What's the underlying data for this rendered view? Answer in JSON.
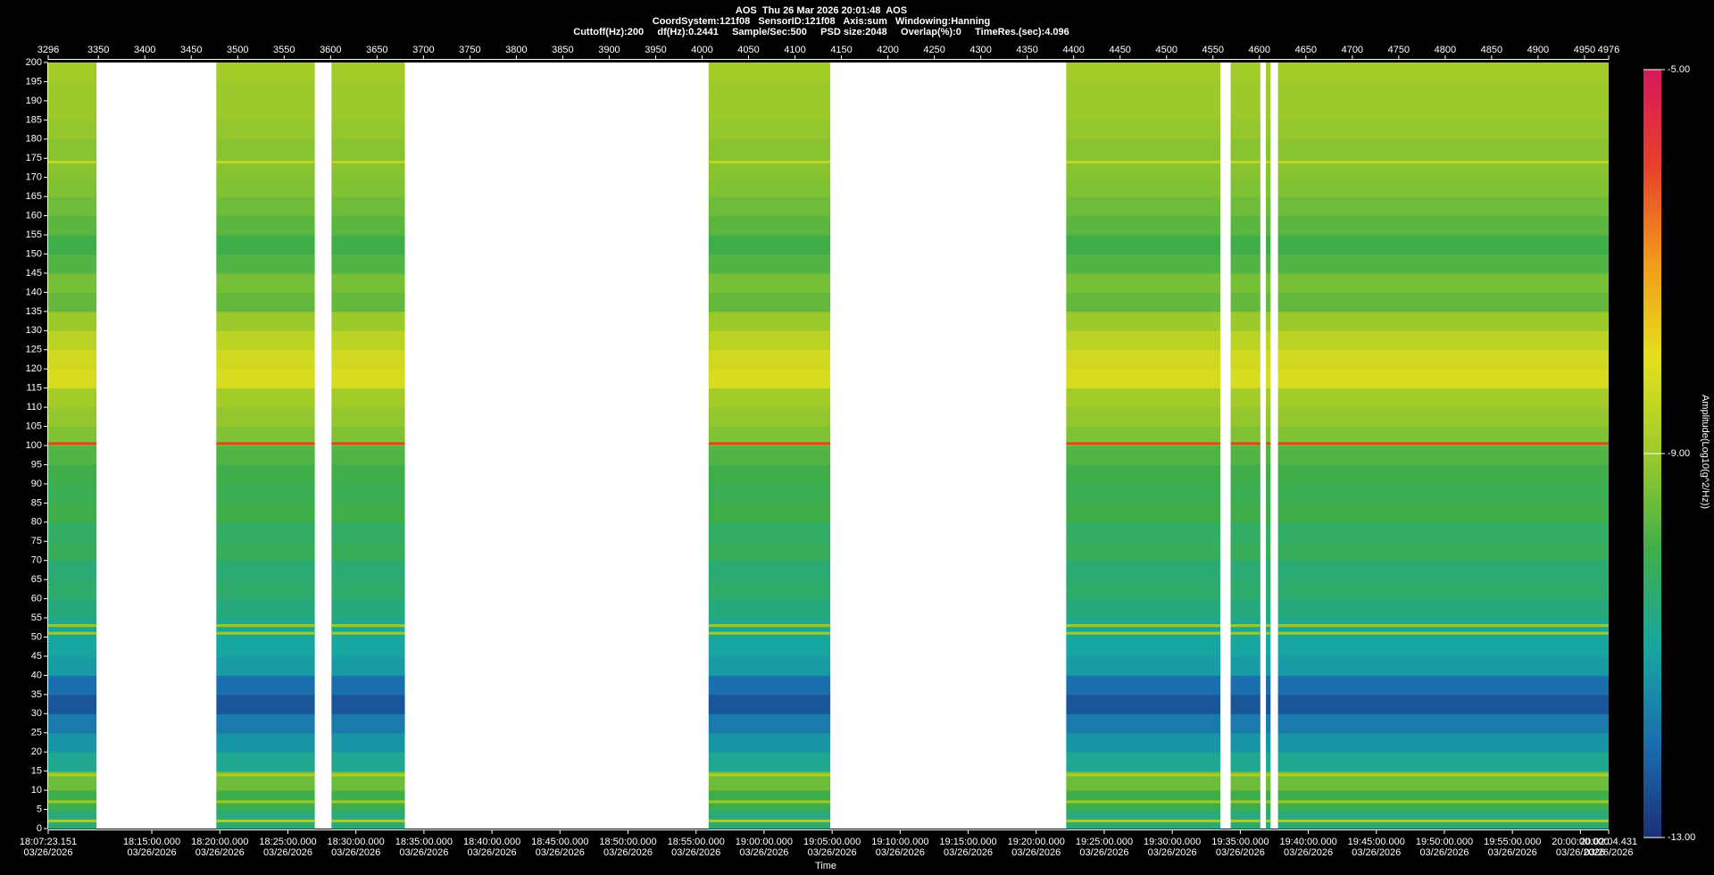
{
  "chart_data": {
    "type": "spectrogram",
    "title": "AOS  Thu 26 Mar 2026 20:01:48  AOS",
    "subtitle": "CoordSystem:121f08   SensorID:121f08   Axis:sum   Windowing:Hanning",
    "parameters": "Cuttoff(Hz):200     df(Hz):0.2441     Sample/Sec:500     PSD size:2048     Overlap(%):0     TimeRes.(sec):4.096",
    "x_label": "Time",
    "colorbar_label": "Amplitude(Log10(g^2/Hz))",
    "xlim": [
      3296,
      4976
    ],
    "xticks": [
      3296,
      3350,
      3400,
      3450,
      3500,
      3550,
      3600,
      3650,
      3700,
      3750,
      3800,
      3850,
      3900,
      3950,
      4000,
      4050,
      4100,
      4150,
      4200,
      4250,
      4300,
      4350,
      4400,
      4450,
      4500,
      4550,
      4600,
      4650,
      4700,
      4750,
      4800,
      4850,
      4900,
      4950,
      4976
    ],
    "time_ticks": [
      {
        "value": 3296,
        "label": "18:07:23.151",
        "date": "03/26/2026"
      },
      {
        "value": 3407.54,
        "label": "18:15:00.000",
        "date": "03/26/2026"
      },
      {
        "value": 3480.78,
        "label": "18:20:00.000",
        "date": "03/26/2026"
      },
      {
        "value": 3554.03,
        "label": "18:25:00.000",
        "date": "03/26/2026"
      },
      {
        "value": 3627.27,
        "label": "18:30:00.000",
        "date": "03/26/2026"
      },
      {
        "value": 3700.51,
        "label": "18:35:00.000",
        "date": "03/26/2026"
      },
      {
        "value": 3773.75,
        "label": "18:40:00.000",
        "date": "03/26/2026"
      },
      {
        "value": 3847.0,
        "label": "18:45:00.000",
        "date": "03/26/2026"
      },
      {
        "value": 3920.24,
        "label": "18:50:00.000",
        "date": "03/26/2026"
      },
      {
        "value": 3993.48,
        "label": "18:55:00.000",
        "date": "03/26/2026"
      },
      {
        "value": 4066.72,
        "label": "19:00:00.000",
        "date": "03/26/2026"
      },
      {
        "value": 4139.96,
        "label": "19:05:00.000",
        "date": "03/26/2026"
      },
      {
        "value": 4213.21,
        "label": "19:10:00.000",
        "date": "03/26/2026"
      },
      {
        "value": 4286.45,
        "label": "19:15:00.000",
        "date": "03/26/2026"
      },
      {
        "value": 4359.69,
        "label": "19:20:00.000",
        "date": "03/26/2026"
      },
      {
        "value": 4432.93,
        "label": "19:25:00.000",
        "date": "03/26/2026"
      },
      {
        "value": 4506.17,
        "label": "19:30:00.000",
        "date": "03/26/2026"
      },
      {
        "value": 4579.42,
        "label": "19:35:00.000",
        "date": "03/26/2026"
      },
      {
        "value": 4652.66,
        "label": "19:40:00.000",
        "date": "03/26/2026"
      },
      {
        "value": 4725.9,
        "label": "19:45:00.000",
        "date": "03/26/2026"
      },
      {
        "value": 4799.14,
        "label": "19:50:00.000",
        "date": "03/26/2026"
      },
      {
        "value": 4872.39,
        "label": "19:55:00.000",
        "date": "03/26/2026"
      },
      {
        "value": 4945.63,
        "label": "20:00:00.000",
        "date": "03/26/2026"
      },
      {
        "value": 4976,
        "label": "20:02:04.431",
        "date": "03/26/2026"
      }
    ],
    "ylim": [
      0,
      200
    ],
    "yticks": [
      0,
      5,
      10,
      15,
      20,
      25,
      30,
      35,
      40,
      45,
      50,
      55,
      60,
      65,
      70,
      75,
      80,
      85,
      90,
      95,
      100,
      105,
      110,
      115,
      120,
      125,
      130,
      135,
      140,
      145,
      150,
      155,
      160,
      165,
      170,
      175,
      180,
      185,
      190,
      195,
      200
    ],
    "segments": [
      [
        3296,
        3348
      ],
      [
        3477,
        3583
      ],
      [
        3601,
        3680
      ],
      [
        4007,
        4138
      ],
      [
        4392,
        4558
      ],
      [
        4569,
        4601
      ],
      [
        4607,
        4612
      ],
      [
        4620,
        4976
      ]
    ],
    "frequency_bins": [
      0,
      5,
      10,
      15,
      20,
      25,
      30,
      35,
      40,
      45,
      50,
      55,
      60,
      65,
      70,
      75,
      80,
      85,
      90,
      95,
      100,
      105,
      110,
      115,
      120,
      125,
      130,
      135,
      140,
      145,
      150,
      155,
      160,
      165,
      170,
      175,
      180,
      185,
      190,
      195,
      200
    ],
    "amplitude": [
      -10.5,
      -10,
      -9.5,
      -10.8,
      -11.3,
      -11.8,
      -12.4,
      -12,
      -11.2,
      -11,
      -10.8,
      -10.6,
      -10.4,
      -10.5,
      -10.2,
      -10.3,
      -10,
      -10.1,
      -10,
      -9.8,
      -9.3,
      -9.1,
      -8.9,
      -8.2,
      -8.3,
      -8.6,
      -9,
      -9.6,
      -9.4,
      -9.8,
      -10,
      -9.7,
      -9.5,
      -9.3,
      -9.2,
      -9.2,
      -9.1,
      -9,
      -9,
      -8.9
    ],
    "lines": {
      "frequencies": [
        2,
        7,
        14,
        51,
        53,
        100.5,
        174
      ],
      "amplitude": [
        -8.8,
        -9,
        -8.8,
        -9,
        -9,
        -6,
        -8.5
      ]
    },
    "clim": [
      -13,
      -5
    ],
    "colorbar_ticks": [
      {
        "value": -5,
        "label": "-5.00"
      },
      {
        "value": -9,
        "label": "-9.00"
      },
      {
        "value": -13,
        "label": "-13.00"
      }
    ],
    "colormap": [
      "#1c2f7a",
      "#1a6fae",
      "#17a6a0",
      "#3fae4a",
      "#9cca2a",
      "#e6e01c",
      "#f29a1a",
      "#e8402a",
      "#d8185a"
    ],
    "gap_color": "#ffffff"
  }
}
